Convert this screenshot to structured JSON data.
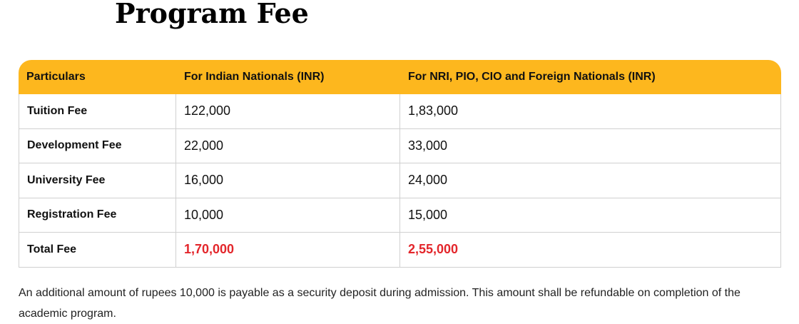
{
  "title": "Program Fee",
  "table": {
    "headers": [
      "Particulars",
      "For Indian Nationals (INR)",
      "For NRI, PIO, CIO and Foreign Nationals (INR)"
    ],
    "rows": [
      [
        "Tuition Fee",
        "122,000",
        "1,83,000"
      ],
      [
        "Development Fee",
        "22,000",
        "33,000"
      ],
      [
        "University Fee",
        "16,000",
        "24,000"
      ],
      [
        "Registration Fee",
        "10,000",
        "15,000"
      ],
      [
        "Total Fee",
        "1,70,000",
        "2,55,000"
      ]
    ]
  },
  "note": "An additional amount of rupees 10,000 is payable as a security deposit during admission. This amount shall be refundable on completion of the academic program.",
  "colors": {
    "header_bg": "#fdb71e",
    "total_text": "#e3262b"
  }
}
